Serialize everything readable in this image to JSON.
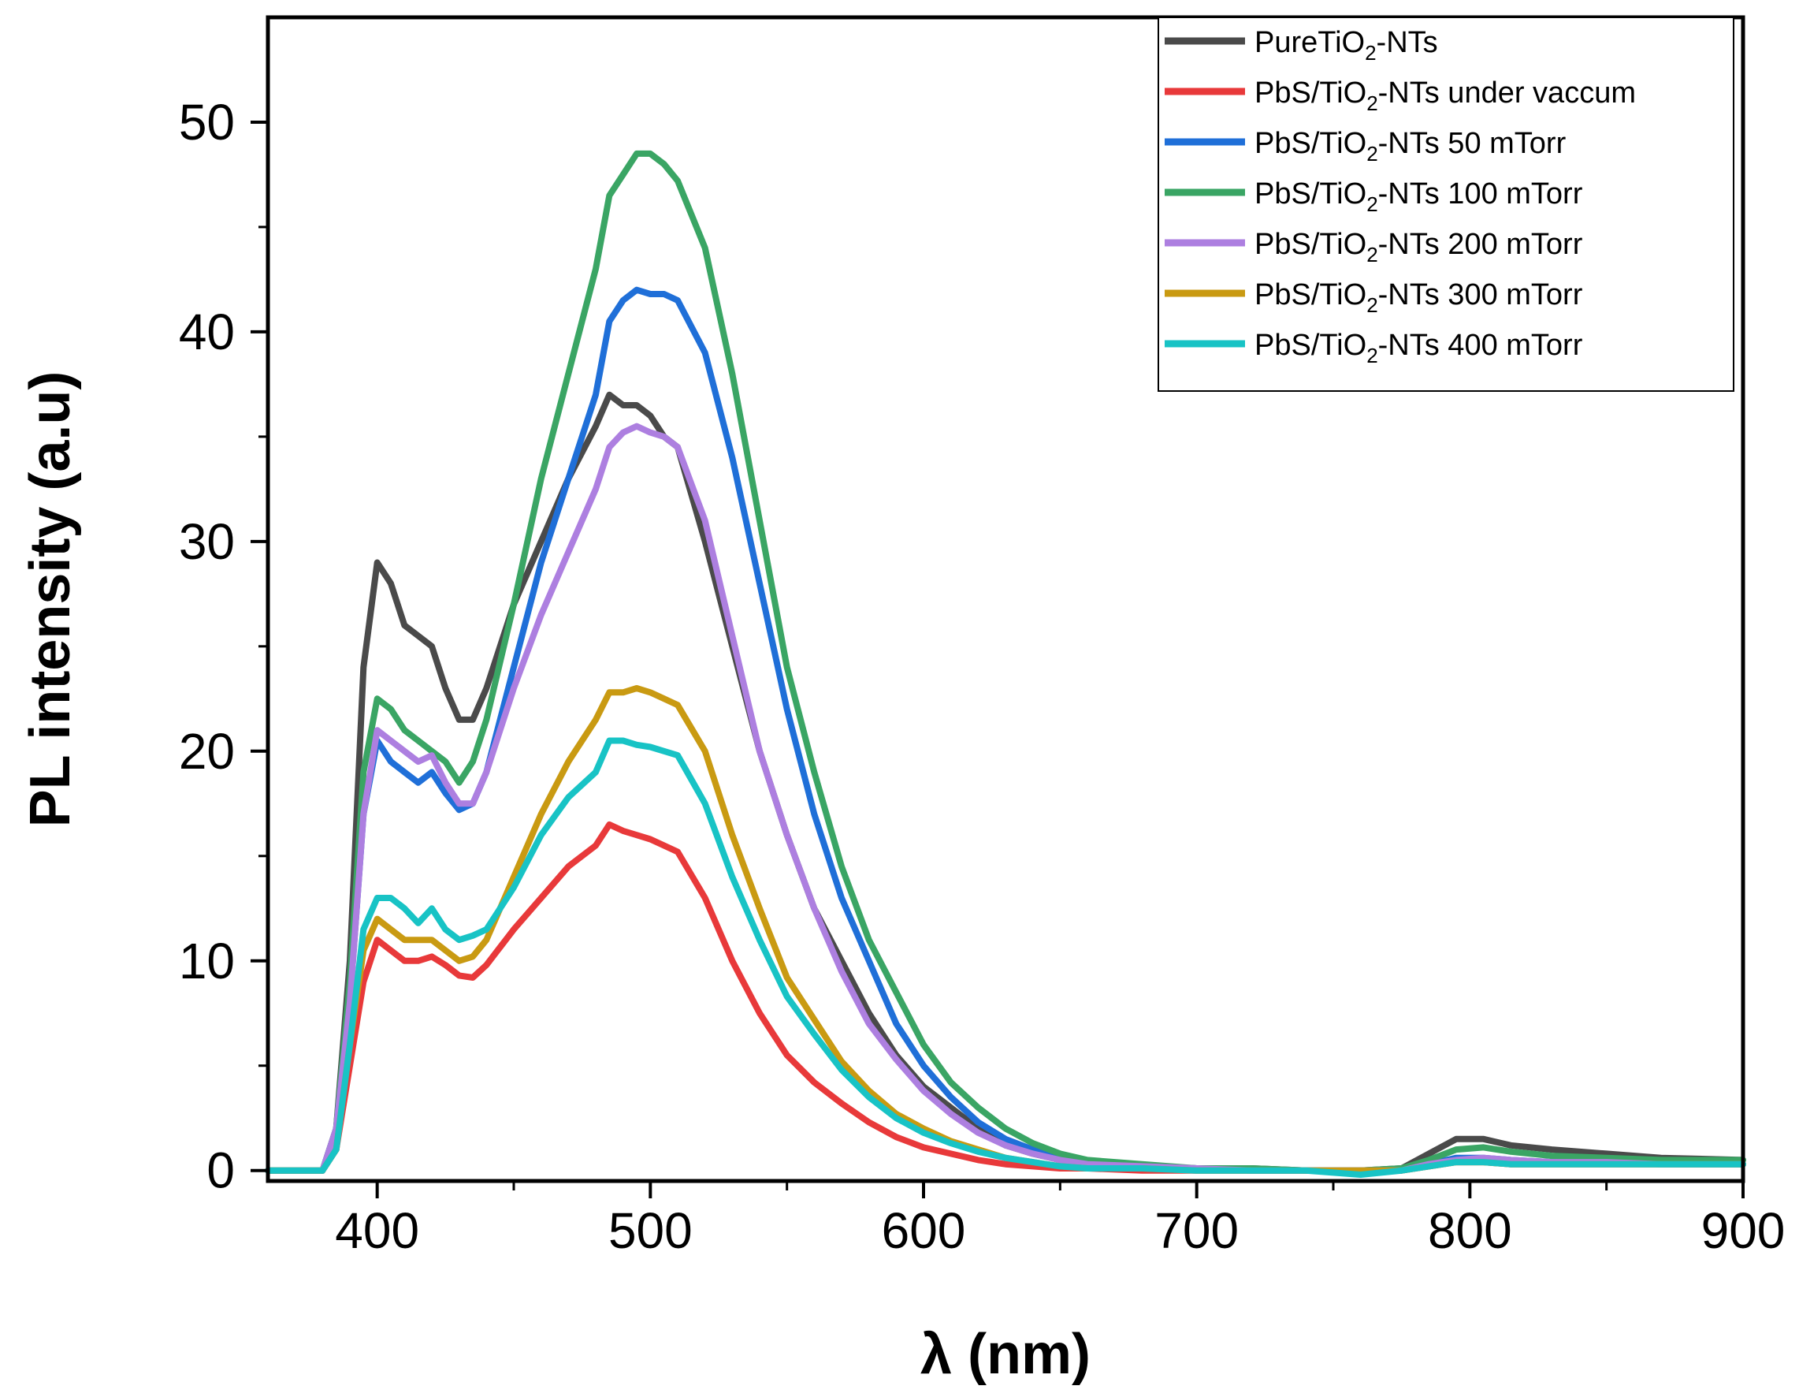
{
  "chart_data": {
    "type": "line",
    "title": "",
    "xlabel": "λ (nm)",
    "ylabel": "PL intensity (a.u)",
    "xlim": [
      360,
      900
    ],
    "ylim": [
      -0.5,
      55
    ],
    "xticks": [
      400,
      500,
      600,
      700,
      800,
      900
    ],
    "yticks": [
      0,
      10,
      20,
      30,
      40,
      50
    ],
    "grid": false,
    "legend_position": "top-right",
    "series": [
      {
        "name": "PureTiO2-NTs",
        "legend": {
          "pre": "PureTiO",
          "sub": "2",
          "post": "-NTs"
        },
        "color": "#4a4a4a",
        "x": [
          360,
          380,
          385,
          390,
          395,
          400,
          405,
          410,
          415,
          420,
          425,
          430,
          435,
          440,
          450,
          460,
          470,
          480,
          485,
          490,
          495,
          500,
          505,
          510,
          520,
          530,
          540,
          550,
          560,
          570,
          580,
          590,
          600,
          610,
          620,
          630,
          640,
          650,
          660,
          680,
          700,
          720,
          740,
          760,
          775,
          785,
          795,
          805,
          815,
          830,
          850,
          870,
          900
        ],
        "y": [
          0,
          0,
          2,
          10,
          24,
          29,
          28,
          26,
          25.5,
          25,
          23,
          21.5,
          21.5,
          23,
          27,
          30,
          33,
          35.5,
          37,
          36.5,
          36.5,
          36,
          35,
          34.5,
          30,
          25,
          20,
          16,
          12.5,
          10,
          7.5,
          5.5,
          4,
          3,
          2,
          1.2,
          0.8,
          0.5,
          0.3,
          0.2,
          0.1,
          0.1,
          0,
          0,
          0.1,
          0.8,
          1.5,
          1.5,
          1.2,
          1.0,
          0.8,
          0.6,
          0.5
        ]
      },
      {
        "name": "PbS/TiO2-NTs under vaccum",
        "legend": {
          "pre": " PbS/TiO",
          "sub": "2",
          "post": "-NTs under vaccum"
        },
        "color": "#e8393a",
        "x": [
          360,
          380,
          385,
          390,
          395,
          400,
          405,
          410,
          415,
          420,
          425,
          430,
          435,
          440,
          450,
          460,
          470,
          480,
          485,
          490,
          495,
          500,
          505,
          510,
          520,
          530,
          540,
          550,
          560,
          570,
          580,
          590,
          600,
          610,
          620,
          630,
          640,
          650,
          660,
          680,
          700,
          720,
          740,
          760,
          775,
          785,
          795,
          805,
          815,
          830,
          850,
          870,
          900
        ],
        "y": [
          0,
          0,
          1,
          5,
          9,
          11,
          10.5,
          10,
          10,
          10.2,
          9.8,
          9.3,
          9.2,
          9.8,
          11.5,
          13,
          14.5,
          15.5,
          16.5,
          16.2,
          16,
          15.8,
          15.5,
          15.2,
          13,
          10,
          7.5,
          5.5,
          4.2,
          3.2,
          2.3,
          1.6,
          1.1,
          0.8,
          0.5,
          0.3,
          0.2,
          0.1,
          0.1,
          0,
          0,
          0,
          0,
          0,
          0,
          0.2,
          0.4,
          0.4,
          0.3,
          0.3,
          0.3,
          0.3,
          0.3
        ]
      },
      {
        "name": "PbS/TiO2-NTs 50 mTorr",
        "legend": {
          "pre": "PbS/TiO",
          "sub": "2",
          "post": "-NTs 50 mTorr"
        },
        "color": "#1f6fd8",
        "x": [
          360,
          380,
          385,
          390,
          395,
          400,
          405,
          410,
          415,
          420,
          425,
          430,
          435,
          440,
          450,
          460,
          470,
          480,
          485,
          490,
          495,
          500,
          505,
          510,
          520,
          530,
          540,
          550,
          560,
          570,
          580,
          590,
          600,
          610,
          620,
          630,
          640,
          650,
          660,
          680,
          700,
          720,
          740,
          760,
          775,
          785,
          795,
          805,
          815,
          830,
          850,
          870,
          900
        ],
        "y": [
          0,
          0,
          2,
          8,
          17,
          20.5,
          19.5,
          19,
          18.5,
          19,
          18,
          17.2,
          17.5,
          19,
          24,
          29,
          33,
          37,
          40.5,
          41.5,
          42,
          41.8,
          41.8,
          41.5,
          39,
          34,
          28,
          22,
          17,
          13,
          10,
          7,
          5,
          3.5,
          2.3,
          1.5,
          1,
          0.6,
          0.4,
          0.2,
          0.1,
          0,
          0,
          0,
          0,
          0.3,
          0.6,
          0.6,
          0.5,
          0.4,
          0.4,
          0.3,
          0.3
        ]
      },
      {
        "name": "PbS/TiO2-NTs 100 mTorr",
        "legend": {
          "pre": "PbS/TiO",
          "sub": "2",
          "post": "-NTs 100 mTorr"
        },
        "color": "#3aa564",
        "x": [
          360,
          380,
          385,
          390,
          395,
          400,
          405,
          410,
          415,
          420,
          425,
          430,
          435,
          440,
          450,
          460,
          470,
          480,
          485,
          490,
          495,
          500,
          505,
          510,
          520,
          530,
          540,
          550,
          560,
          570,
          580,
          590,
          600,
          610,
          620,
          630,
          640,
          650,
          660,
          680,
          700,
          720,
          740,
          760,
          775,
          785,
          795,
          805,
          815,
          830,
          850,
          870,
          900
        ],
        "y": [
          0,
          0,
          2,
          9,
          19,
          22.5,
          22,
          21,
          20.5,
          20,
          19.5,
          18.5,
          19.5,
          21.5,
          27,
          33,
          38,
          43,
          46.5,
          47.5,
          48.5,
          48.5,
          48,
          47.2,
          44,
          38,
          31,
          24,
          19,
          14.5,
          11,
          8.5,
          6,
          4.2,
          3,
          2,
          1.3,
          0.8,
          0.5,
          0.3,
          0.1,
          0.1,
          0,
          0,
          0.1,
          0.5,
          1.0,
          1.1,
          0.9,
          0.7,
          0.6,
          0.5,
          0.5
        ]
      },
      {
        "name": "PbS/TiO2-NTs 200 mTorr",
        "legend": {
          "pre": "PbS/TiO",
          "sub": "2",
          "post": "-NTs 200 mTorr"
        },
        "color": "#ad7fe0",
        "x": [
          360,
          380,
          385,
          390,
          395,
          400,
          405,
          410,
          415,
          420,
          425,
          430,
          435,
          440,
          450,
          460,
          470,
          480,
          485,
          490,
          495,
          500,
          505,
          510,
          520,
          530,
          540,
          550,
          560,
          570,
          580,
          590,
          600,
          610,
          620,
          630,
          640,
          650,
          660,
          680,
          700,
          720,
          740,
          760,
          775,
          785,
          795,
          805,
          815,
          830,
          850,
          870,
          900
        ],
        "y": [
          0,
          0,
          2,
          8,
          17,
          21,
          20.5,
          20,
          19.5,
          19.8,
          18.5,
          17.5,
          17.5,
          19,
          23,
          26.5,
          29.5,
          32.5,
          34.5,
          35.2,
          35.5,
          35.2,
          35,
          34.5,
          31,
          25.5,
          20,
          16,
          12.5,
          9.5,
          7,
          5.3,
          3.8,
          2.7,
          1.8,
          1.2,
          0.8,
          0.5,
          0.3,
          0.2,
          0.1,
          0,
          0,
          0,
          0,
          0.3,
          0.5,
          0.6,
          0.5,
          0.4,
          0.4,
          0.3,
          0.3
        ]
      },
      {
        "name": "PbS/TiO2-NTs 300 mTorr",
        "legend": {
          "pre": "PbS/TiO",
          "sub": "2",
          "post": "-NTs 300 mTorr"
        },
        "color": "#c99a12",
        "x": [
          360,
          380,
          385,
          390,
          395,
          400,
          405,
          410,
          415,
          420,
          425,
          430,
          435,
          440,
          450,
          460,
          470,
          480,
          485,
          490,
          495,
          500,
          505,
          510,
          520,
          530,
          540,
          550,
          560,
          570,
          580,
          590,
          600,
          610,
          620,
          630,
          640,
          650,
          660,
          680,
          700,
          720,
          740,
          760,
          775,
          785,
          795,
          805,
          815,
          830,
          850,
          870,
          900
        ],
        "y": [
          0,
          0,
          1,
          6,
          10.5,
          12,
          11.5,
          11,
          11,
          11,
          10.5,
          10,
          10.2,
          11,
          14,
          17,
          19.5,
          21.5,
          22.8,
          22.8,
          23,
          22.8,
          22.5,
          22.2,
          20,
          16,
          12.5,
          9.2,
          7.2,
          5.2,
          3.8,
          2.7,
          2,
          1.4,
          1,
          0.6,
          0.4,
          0.2,
          0.1,
          0.1,
          0,
          0,
          0,
          0,
          0,
          0.2,
          0.4,
          0.4,
          0.3,
          0.3,
          0.3,
          0.3,
          0.3
        ]
      },
      {
        "name": "PbS/TiO2-NTs 400 mTorr",
        "legend": {
          "pre": "PbS/TiO",
          "sub": "2",
          "post": "-NTs 400 mTorr"
        },
        "color": "#18c3c5",
        "x": [
          360,
          380,
          385,
          390,
          395,
          400,
          405,
          410,
          415,
          420,
          425,
          430,
          435,
          440,
          450,
          460,
          470,
          480,
          485,
          490,
          495,
          500,
          505,
          510,
          520,
          530,
          540,
          550,
          560,
          570,
          580,
          590,
          600,
          610,
          620,
          630,
          640,
          650,
          660,
          680,
          700,
          720,
          740,
          760,
          775,
          785,
          795,
          805,
          815,
          830,
          850,
          870,
          900
        ],
        "y": [
          0,
          0,
          1,
          6,
          11.5,
          13,
          13,
          12.5,
          11.8,
          12.5,
          11.5,
          11,
          11.2,
          11.5,
          13.5,
          16,
          17.8,
          19,
          20.5,
          20.5,
          20.3,
          20.2,
          20,
          19.8,
          17.5,
          14,
          11,
          8.3,
          6.5,
          4.8,
          3.5,
          2.5,
          1.8,
          1.3,
          0.9,
          0.6,
          0.4,
          0.2,
          0.1,
          0.1,
          0,
          0,
          0,
          -0.2,
          0,
          0.2,
          0.4,
          0.4,
          0.3,
          0.3,
          0.3,
          0.3,
          0.3
        ]
      }
    ]
  }
}
